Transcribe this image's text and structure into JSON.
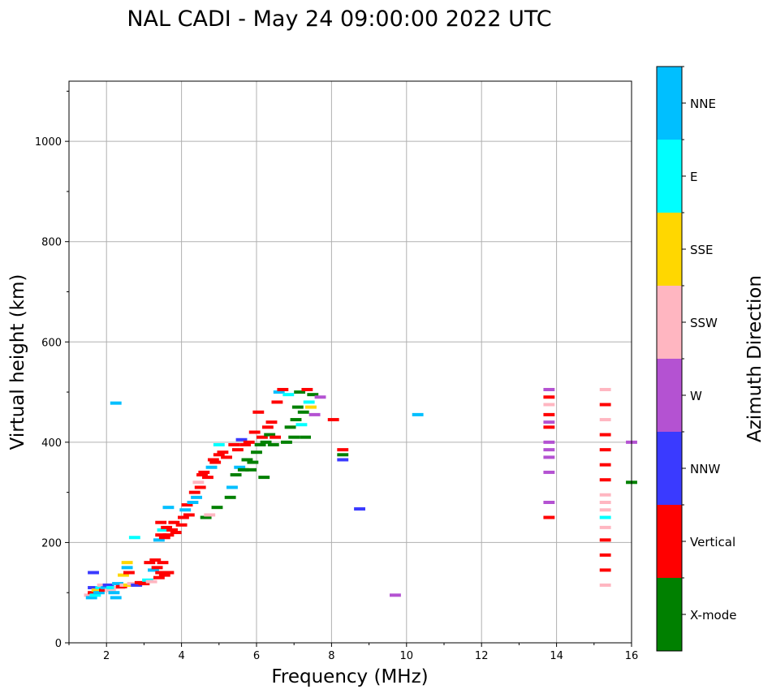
{
  "chart_data": {
    "type": "scatter",
    "title": "NAL CADI - May 24 09:00:00 2022 UTC",
    "xlabel": "Frequency (MHz)",
    "ylabel": "Virtual height (km)",
    "xlim": [
      1,
      16
    ],
    "ylim": [
      0,
      1120
    ],
    "xticks": [
      "2",
      "4",
      "6",
      "8",
      "10",
      "12",
      "14",
      "16"
    ],
    "yticks": [
      "0",
      "200",
      "400",
      "600",
      "800",
      "1000"
    ],
    "grid": true,
    "colorbar": {
      "label": "Azimuth Direction",
      "categories": [
        "X-mode",
        "Vertical",
        "NNW",
        "W",
        "SSW",
        "SSE",
        "E",
        "NNE"
      ],
      "colors": [
        "#008000",
        "#ff0000",
        "#3a3aff",
        "#b452d2",
        "#ffb6c1",
        "#ffd700",
        "#00ffff",
        "#00bfff"
      ]
    },
    "point_format": [
      "frequency_mhz",
      "virtual_height_km",
      "direction_index"
    ],
    "points": [
      [
        1.55,
        95,
        4
      ],
      [
        1.6,
        90,
        7
      ],
      [
        1.65,
        100,
        1
      ],
      [
        1.65,
        110,
        2
      ],
      [
        1.65,
        140,
        2
      ],
      [
        1.7,
        95,
        6
      ],
      [
        1.75,
        105,
        5
      ],
      [
        1.8,
        100,
        7
      ],
      [
        1.85,
        110,
        6
      ],
      [
        1.9,
        115,
        4
      ],
      [
        1.95,
        105,
        1
      ],
      [
        2.0,
        110,
        7
      ],
      [
        2.05,
        115,
        2
      ],
      [
        2.1,
        105,
        4
      ],
      [
        2.15,
        110,
        6
      ],
      [
        2.2,
        100,
        7
      ],
      [
        2.25,
        90,
        7
      ],
      [
        2.3,
        118,
        7
      ],
      [
        2.35,
        110,
        4
      ],
      [
        2.4,
        112,
        1
      ],
      [
        2.45,
        135,
        5
      ],
      [
        2.5,
        115,
        4
      ],
      [
        2.55,
        160,
        5
      ],
      [
        2.55,
        150,
        7
      ],
      [
        2.6,
        115,
        5
      ],
      [
        2.6,
        140,
        1
      ],
      [
        2.7,
        118,
        4
      ],
      [
        2.75,
        210,
        6
      ],
      [
        2.8,
        115,
        2
      ],
      [
        2.9,
        120,
        1
      ],
      [
        3.0,
        118,
        1
      ],
      [
        3.1,
        125,
        6
      ],
      [
        3.15,
        160,
        1
      ],
      [
        3.2,
        122,
        4
      ],
      [
        3.25,
        145,
        7
      ],
      [
        3.3,
        165,
        1
      ],
      [
        3.35,
        150,
        1
      ],
      [
        3.4,
        130,
        1
      ],
      [
        3.45,
        140,
        1
      ],
      [
        3.5,
        160,
        1
      ],
      [
        3.55,
        135,
        1
      ],
      [
        3.65,
        140,
        1
      ],
      [
        3.4,
        205,
        7
      ],
      [
        3.45,
        215,
        1
      ],
      [
        3.45,
        240,
        1
      ],
      [
        3.5,
        225,
        6
      ],
      [
        3.55,
        210,
        1
      ],
      [
        3.6,
        230,
        1
      ],
      [
        3.65,
        215,
        1
      ],
      [
        3.65,
        270,
        7
      ],
      [
        3.75,
        225,
        1
      ],
      [
        3.8,
        240,
        1
      ],
      [
        3.85,
        220,
        1
      ],
      [
        4.0,
        235,
        1
      ],
      [
        4.05,
        250,
        1
      ],
      [
        4.1,
        265,
        7
      ],
      [
        4.15,
        275,
        1
      ],
      [
        4.2,
        255,
        1
      ],
      [
        4.3,
        280,
        7
      ],
      [
        4.35,
        300,
        1
      ],
      [
        4.4,
        290,
        7
      ],
      [
        4.45,
        320,
        4
      ],
      [
        4.5,
        310,
        1
      ],
      [
        4.55,
        335,
        1
      ],
      [
        4.6,
        340,
        1
      ],
      [
        4.65,
        250,
        0
      ],
      [
        4.7,
        330,
        1
      ],
      [
        4.75,
        255,
        4
      ],
      [
        4.8,
        350,
        7
      ],
      [
        4.85,
        365,
        1
      ],
      [
        4.9,
        360,
        1
      ],
      [
        4.95,
        270,
        0
      ],
      [
        5.0,
        375,
        1
      ],
      [
        5.0,
        395,
        6
      ],
      [
        5.1,
        380,
        1
      ],
      [
        5.2,
        370,
        1
      ],
      [
        5.3,
        290,
        0
      ],
      [
        5.35,
        310,
        7
      ],
      [
        5.4,
        395,
        1
      ],
      [
        5.45,
        335,
        0
      ],
      [
        5.5,
        385,
        1
      ],
      [
        5.55,
        350,
        7
      ],
      [
        5.6,
        405,
        2
      ],
      [
        5.65,
        345,
        0
      ],
      [
        5.7,
        395,
        1
      ],
      [
        5.75,
        365,
        0
      ],
      [
        5.8,
        400,
        1
      ],
      [
        5.85,
        345,
        0
      ],
      [
        5.9,
        360,
        0
      ],
      [
        5.95,
        420,
        1
      ],
      [
        6.0,
        380,
        0
      ],
      [
        6.05,
        460,
        1
      ],
      [
        6.1,
        395,
        0
      ],
      [
        6.15,
        410,
        1
      ],
      [
        6.2,
        330,
        0
      ],
      [
        6.25,
        400,
        0
      ],
      [
        6.3,
        430,
        1
      ],
      [
        6.35,
        415,
        0
      ],
      [
        6.4,
        440,
        1
      ],
      [
        6.45,
        395,
        0
      ],
      [
        6.5,
        410,
        1
      ],
      [
        6.55,
        480,
        1
      ],
      [
        6.6,
        500,
        7
      ],
      [
        6.7,
        505,
        1
      ],
      [
        6.8,
        400,
        0
      ],
      [
        6.85,
        495,
        6
      ],
      [
        6.9,
        430,
        0
      ],
      [
        7.0,
        410,
        0
      ],
      [
        7.05,
        445,
        0
      ],
      [
        7.1,
        470,
        0
      ],
      [
        7.15,
        500,
        0
      ],
      [
        7.2,
        435,
        6
      ],
      [
        7.25,
        460,
        0
      ],
      [
        7.3,
        410,
        0
      ],
      [
        7.35,
        505,
        1
      ],
      [
        7.4,
        480,
        6
      ],
      [
        7.45,
        470,
        5
      ],
      [
        7.5,
        495,
        0
      ],
      [
        7.55,
        455,
        3
      ],
      [
        7.7,
        490,
        3
      ],
      [
        8.05,
        445,
        1
      ],
      [
        8.3,
        385,
        1
      ],
      [
        8.3,
        375,
        0
      ],
      [
        8.3,
        365,
        2
      ],
      [
        8.75,
        267,
        2
      ],
      [
        10.3,
        455,
        7
      ],
      [
        9.7,
        95,
        3
      ],
      [
        2.25,
        478,
        7
      ],
      [
        13.8,
        505,
        3
      ],
      [
        13.8,
        490,
        1
      ],
      [
        13.8,
        475,
        4
      ],
      [
        13.8,
        455,
        1
      ],
      [
        13.8,
        440,
        3
      ],
      [
        13.8,
        430,
        1
      ],
      [
        13.8,
        400,
        3
      ],
      [
        13.8,
        385,
        3
      ],
      [
        13.8,
        370,
        3
      ],
      [
        13.8,
        340,
        3
      ],
      [
        13.8,
        280,
        3
      ],
      [
        13.8,
        250,
        1
      ],
      [
        15.3,
        505,
        4
      ],
      [
        15.3,
        475,
        1
      ],
      [
        15.3,
        445,
        4
      ],
      [
        15.3,
        415,
        1
      ],
      [
        15.3,
        385,
        1
      ],
      [
        15.3,
        355,
        1
      ],
      [
        15.3,
        325,
        1
      ],
      [
        15.3,
        295,
        4
      ],
      [
        15.3,
        280,
        4
      ],
      [
        15.3,
        265,
        4
      ],
      [
        15.3,
        250,
        6
      ],
      [
        15.3,
        230,
        4
      ],
      [
        15.3,
        205,
        1
      ],
      [
        15.3,
        175,
        1
      ],
      [
        15.3,
        145,
        1
      ],
      [
        15.3,
        115,
        4
      ],
      [
        16.0,
        320,
        0
      ],
      [
        16.0,
        400,
        3
      ]
    ]
  }
}
